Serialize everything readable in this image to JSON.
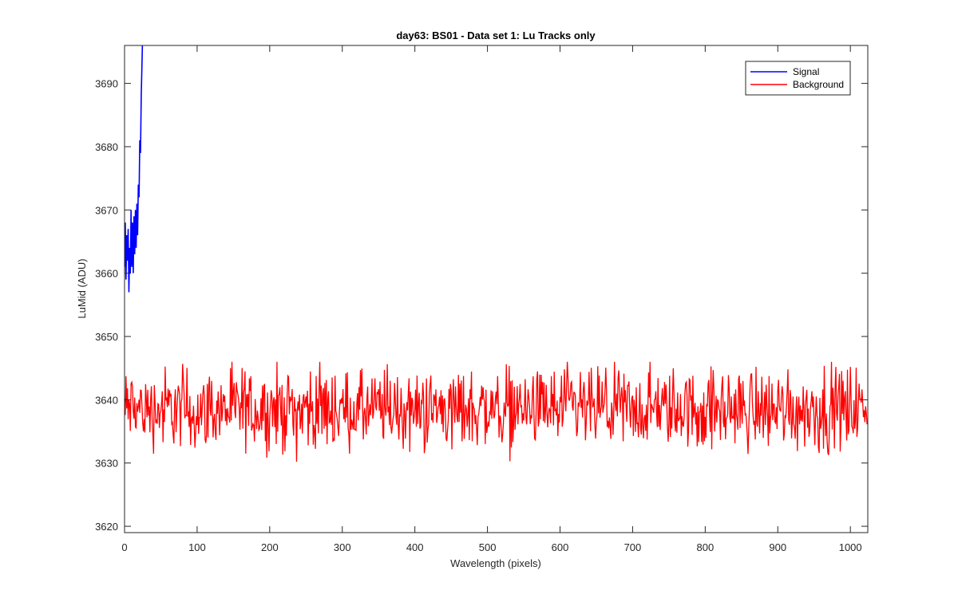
{
  "chart_data": {
    "type": "line",
    "title": "day63: BS01 - Data set 1: Lu Tracks only",
    "xlabel": "Wavelength (pixels)",
    "ylabel": "LuMid (ADU)",
    "xlim": [
      0,
      1024
    ],
    "ylim": [
      3619,
      3696
    ],
    "xticks": [
      0,
      100,
      200,
      300,
      400,
      500,
      600,
      700,
      800,
      900,
      1000
    ],
    "yticks": [
      3620,
      3630,
      3640,
      3650,
      3660,
      3670,
      3680,
      3690
    ],
    "grid": false,
    "legend_position": "top-right",
    "series": [
      {
        "name": "Signal",
        "color": "#0000ff",
        "x": [
          0,
          1,
          2,
          3,
          4,
          5,
          6,
          7,
          8,
          9,
          10,
          11,
          12,
          13,
          14,
          15,
          16,
          17,
          18,
          19,
          20,
          21,
          22,
          23,
          24,
          25,
          26
        ],
        "values": [
          3661,
          3668,
          3659,
          3666,
          3662,
          3667,
          3657,
          3664,
          3660,
          3670,
          3661,
          3668,
          3660,
          3669,
          3663,
          3670,
          3664,
          3671,
          3666,
          3674,
          3672,
          3681,
          3679,
          3688,
          3693,
          3698,
          3700
        ]
      },
      {
        "name": "Background",
        "color": "#ff0000",
        "x_range": [
          0,
          1023
        ],
        "mean": 3638.5,
        "min": 3629,
        "max": 3646
      }
    ]
  }
}
